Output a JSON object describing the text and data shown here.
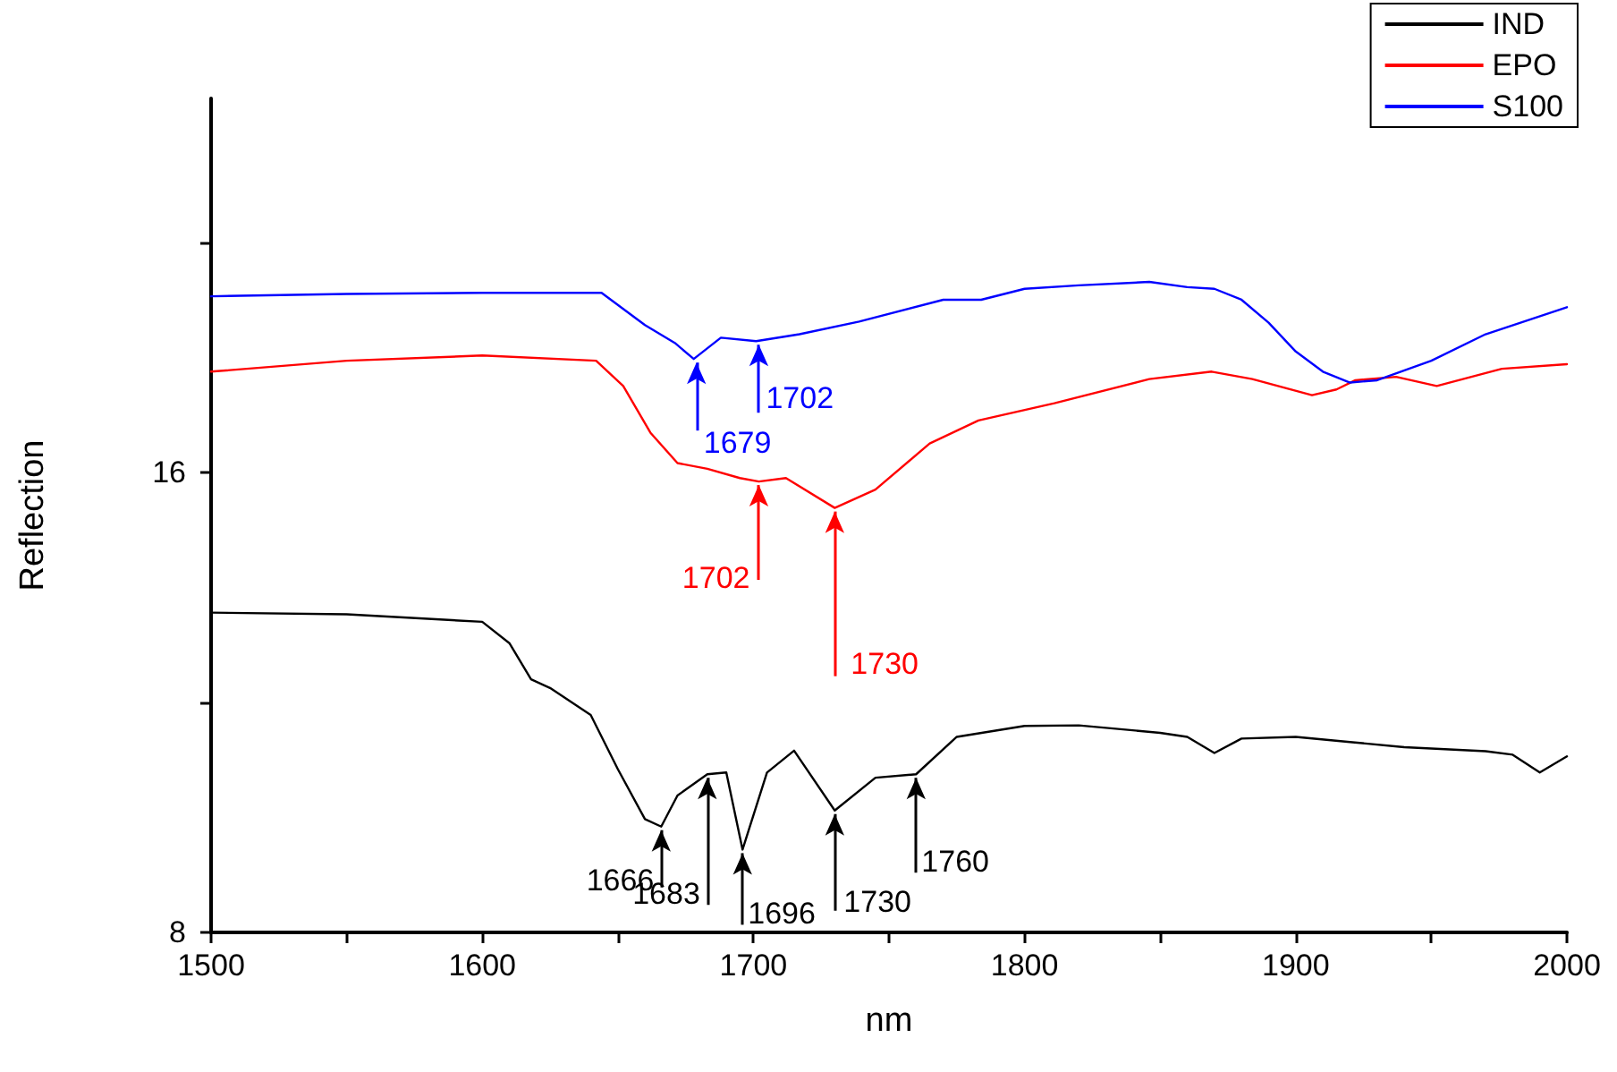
{
  "chart_data": {
    "type": "line",
    "xlabel": "nm",
    "ylabel": "Reflection",
    "xlim": [
      1500,
      2000
    ],
    "ylim": [
      8,
      22.5
    ],
    "xticks": [
      1500,
      {
        "value": 1550,
        "label": null
      },
      1600,
      {
        "value": 1650,
        "label": null
      },
      1700,
      {
        "value": 1750,
        "label": null
      },
      1800,
      {
        "value": 1850,
        "label": null
      },
      1900,
      {
        "value": 1950,
        "label": null
      },
      2000
    ],
    "yticks": [
      8,
      {
        "value": 12,
        "label": null
      },
      16,
      {
        "value": 20,
        "label": null
      }
    ],
    "grid": false,
    "legend": "top right",
    "marker": "none",
    "line_style": "solid",
    "series": [
      {
        "name": "IND",
        "color": "#000000",
        "x": [
          1500,
          1550,
          1600,
          1610,
          1618,
          1625,
          1640,
          1650,
          1660,
          1666,
          1672,
          1683,
          1690,
          1696,
          1705,
          1715,
          1730,
          1745,
          1760,
          1775,
          1800,
          1820,
          1850,
          1860,
          1870,
          1880,
          1900,
          1920,
          1940,
          1970,
          1980,
          1990,
          2000
        ],
        "values": [
          13.56,
          13.53,
          13.4,
          13.03,
          12.4,
          12.25,
          11.78,
          10.84,
          9.97,
          9.84,
          10.38,
          10.75,
          10.78,
          9.44,
          10.78,
          11.16,
          10.12,
          10.69,
          10.75,
          11.4,
          11.59,
          11.6,
          11.47,
          11.4,
          11.12,
          11.37,
          11.4,
          11.31,
          11.22,
          11.15,
          11.09,
          10.78,
          11.06
        ]
      },
      {
        "name": "EPO",
        "color": "#ff0000",
        "x": [
          1500,
          1550,
          1600,
          1642,
          1652,
          1662,
          1672,
          1683,
          1695,
          1702,
          1712,
          1730,
          1745,
          1765,
          1783,
          1811,
          1846,
          1869,
          1884,
          1906,
          1915,
          1922,
          1937,
          1952,
          1976,
          2000
        ],
        "values": [
          17.75,
          17.94,
          18.03,
          17.94,
          17.5,
          16.69,
          16.16,
          16.06,
          15.9,
          15.84,
          15.9,
          15.38,
          15.7,
          16.5,
          16.9,
          17.2,
          17.62,
          17.75,
          17.62,
          17.34,
          17.44,
          17.6,
          17.66,
          17.5,
          17.8,
          17.88
        ]
      },
      {
        "name": "S100",
        "color": "#0000ff",
        "x": [
          1500,
          1550,
          1600,
          1644,
          1660,
          1671,
          1678,
          1688,
          1701,
          1717,
          1739,
          1770,
          1784,
          1800,
          1820,
          1846,
          1860,
          1870,
          1880,
          1890,
          1900,
          1910,
          1920,
          1930,
          1950,
          1970,
          2000
        ],
        "values": [
          19.06,
          19.1,
          19.12,
          19.12,
          18.56,
          18.25,
          17.97,
          18.34,
          18.28,
          18.4,
          18.62,
          19.0,
          19.0,
          19.19,
          19.25,
          19.31,
          19.22,
          19.19,
          19.0,
          18.6,
          18.1,
          17.75,
          17.56,
          17.6,
          17.94,
          18.4,
          18.87
        ]
      }
    ],
    "annotations": [
      {
        "text": "1679",
        "x": 1679,
        "y": 17.97
      },
      {
        "text": "1702",
        "x": 1702,
        "y": 18.28
      },
      {
        "text": "1702",
        "x": 1702,
        "y": 15.84
      },
      {
        "text": "1730",
        "x": 1730,
        "y": 15.38
      },
      {
        "text": "1666",
        "x": 1666,
        "y": 9.84
      },
      {
        "text": "1683",
        "x": 1683,
        "y": 10.75
      },
      {
        "text": "1696",
        "x": 1696,
        "y": 9.44
      },
      {
        "text": "1730",
        "x": 1730,
        "y": 10.12
      },
      {
        "text": "1760",
        "x": 1760,
        "y": 10.75
      }
    ]
  }
}
